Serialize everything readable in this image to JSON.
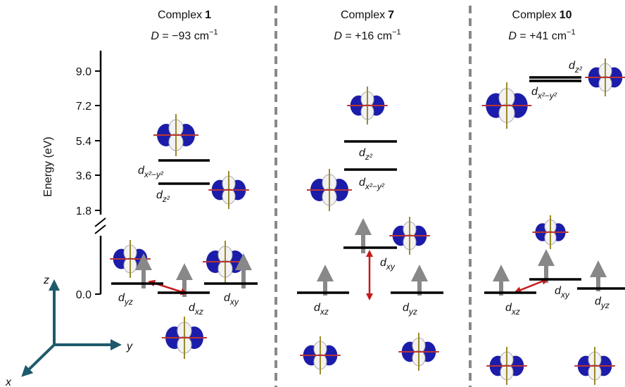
{
  "energy_axis": {
    "label": "Energy (eV)",
    "ticks": [
      "0.0",
      "1.8",
      "3.6",
      "5.4",
      "7.2",
      "9.0"
    ]
  },
  "axes": {
    "x": "x",
    "y": "y",
    "z": "z"
  },
  "columns": [
    {
      "name": "Complex",
      "number": "1",
      "d_symbol": "D",
      "d_value": " = −93 cm",
      "d_exp": "−1",
      "levels": [
        {
          "d": "d",
          "sub": "x²−y²"
        },
        {
          "d": "d",
          "sub": "z²"
        },
        {
          "d": "d",
          "sub": "yz"
        },
        {
          "d": "d",
          "sub": "xz"
        },
        {
          "d": "d",
          "sub": "xy"
        }
      ]
    },
    {
      "name": "Complex",
      "number": "7",
      "d_symbol": "D",
      "d_value": " = +16 cm",
      "d_exp": "−1",
      "levels": [
        {
          "d": "d",
          "sub": "z²"
        },
        {
          "d": "d",
          "sub": "x²−y²"
        },
        {
          "d": "d",
          "sub": "xy"
        },
        {
          "d": "d",
          "sub": "xz"
        },
        {
          "d": "d",
          "sub": "yz"
        }
      ]
    },
    {
      "name": "Complex",
      "number": "10",
      "d_symbol": "D",
      "d_value": " = +41 cm",
      "d_exp": "−1",
      "levels": [
        {
          "d": "d",
          "sub": "z²"
        },
        {
          "d": "d",
          "sub": "x²−y²"
        },
        {
          "d": "d",
          "sub": "xz"
        },
        {
          "d": "d",
          "sub": "xy"
        },
        {
          "d": "d",
          "sub": "yz"
        }
      ]
    }
  ]
}
